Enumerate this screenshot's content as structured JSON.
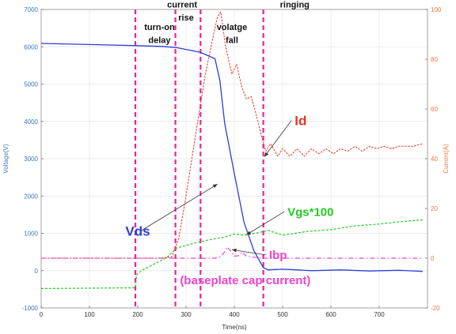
{
  "chart_data": {
    "type": "line",
    "xlabel": "Time(ns)",
    "ylabel_left": "Voltage(V)",
    "ylabel_right": "Current(A)",
    "xlim": [
      0,
      800
    ],
    "ylim_left": [
      -1000,
      7000
    ],
    "ylim_right": [
      -20,
      100
    ],
    "x_ticks": [
      "0",
      "100",
      "200",
      "300",
      "400",
      "500",
      "600",
      "700"
    ],
    "y_left_ticks": [
      "-1000",
      "0",
      "1000",
      "2000",
      "3000",
      "4000",
      "5000",
      "6000",
      "7000"
    ],
    "y_right_ticks": [
      "-20",
      "0",
      "20",
      "40",
      "60",
      "80",
      "100"
    ],
    "grid": true,
    "colors": {
      "vds": "#2a3fd6",
      "id": "#ee3322",
      "vgs": "#22cc22",
      "ibp": "#ee44cc",
      "phase_line": "#ee2299",
      "left_axis": "#3a78c9",
      "right_axis": "#ee7744"
    },
    "phase_lines": [
      195,
      278,
      330,
      460
    ],
    "phase_labels": [
      {
        "text": "turn-on",
        "x": 245,
        "y": 6450
      },
      {
        "text": "delay",
        "x": 245,
        "y": 6100
      },
      {
        "text": "current",
        "x": 292,
        "y": 7050
      },
      {
        "text": "rise",
        "x": 300,
        "y": 6700
      },
      {
        "text": "volatge",
        "x": 395,
        "y": 6450
      },
      {
        "text": "fall",
        "x": 395,
        "y": 6100
      },
      {
        "text": "ringing",
        "x": 525,
        "y": 7050
      }
    ],
    "series": [
      {
        "name": "Vds",
        "axis": "left",
        "x": [
          0,
          100,
          195,
          250,
          280,
          330,
          360,
          370,
          380,
          400,
          420,
          440,
          460,
          470,
          500,
          560,
          620,
          680,
          740,
          790
        ],
        "y": [
          6090,
          6060,
          6030,
          6010,
          5980,
          5850,
          5680,
          5100,
          3950,
          2600,
          1300,
          550,
          80,
          20,
          40,
          0,
          20,
          -10,
          10,
          -20
        ]
      },
      {
        "name": "Id",
        "axis": "right",
        "x": [
          0,
          150,
          195,
          240,
          270,
          285,
          300,
          320,
          340,
          355,
          365,
          372,
          382,
          395,
          405,
          415,
          425,
          435,
          445,
          455,
          465,
          475,
          490,
          500,
          515,
          530,
          545,
          560,
          575,
          590,
          605,
          620,
          635,
          650,
          665,
          680,
          695,
          710,
          725,
          740,
          755,
          770,
          790
        ],
        "y": [
          0,
          0,
          0,
          0,
          0.5,
          8,
          25,
          50,
          74,
          88,
          97,
          99,
          85,
          74,
          78,
          69,
          64,
          65,
          58,
          50,
          43,
          46,
          41,
          44,
          41,
          44,
          41,
          44,
          42,
          44,
          42,
          44,
          43,
          45,
          43,
          45,
          44,
          45,
          44,
          45,
          45,
          45,
          46
        ]
      },
      {
        "name": "Vgs*100",
        "axis": "left",
        "x": [
          0,
          195,
          198,
          210,
          230,
          260,
          280,
          320,
          350,
          380,
          400,
          420,
          450,
          470,
          500,
          550,
          600,
          650,
          700,
          750,
          790
        ],
        "y": [
          -480,
          -460,
          -100,
          20,
          150,
          350,
          600,
          750,
          830,
          900,
          980,
          950,
          1020,
          1080,
          950,
          1050,
          1100,
          1200,
          1250,
          1320,
          1360
        ]
      },
      {
        "name": "Ibp",
        "axis": "right",
        "x": [
          0,
          270,
          330,
          360,
          370,
          378,
          385,
          392,
          400,
          408,
          416,
          424,
          435,
          450,
          470,
          500,
          560,
          620,
          680,
          740,
          790
        ],
        "y": [
          0,
          0,
          0,
          0,
          0.5,
          2,
          4.5,
          3,
          0.8,
          1,
          2.5,
          1,
          0.5,
          0.2,
          0,
          0,
          0,
          0,
          0,
          0,
          0
        ]
      }
    ],
    "annotations": [
      {
        "text": "Id",
        "x": 525,
        "y": 3900,
        "size": 17,
        "color": "#ee3322",
        "arrow_to": [
          462,
          3050
        ]
      },
      {
        "text": "Vds",
        "x": 200,
        "y": 940,
        "size": 17,
        "color": "#2a3fd6",
        "arrow_to": [
          365,
          2320
        ]
      },
      {
        "text": "Vgs*100",
        "x": 510,
        "y": 1470,
        "size": 15,
        "color": "#22cc22",
        "arrow_to": [
          425,
          960
        ]
      },
      {
        "text": "Ibp",
        "x": 472,
        "y": 310,
        "size": 15,
        "color": "#ee44cc",
        "arrow_to": [
          395,
          560
        ]
      },
      {
        "text": "(baseplate cap current)",
        "x": 558,
        "y": -370,
        "size": 15,
        "color": "#ee44cc"
      }
    ]
  }
}
